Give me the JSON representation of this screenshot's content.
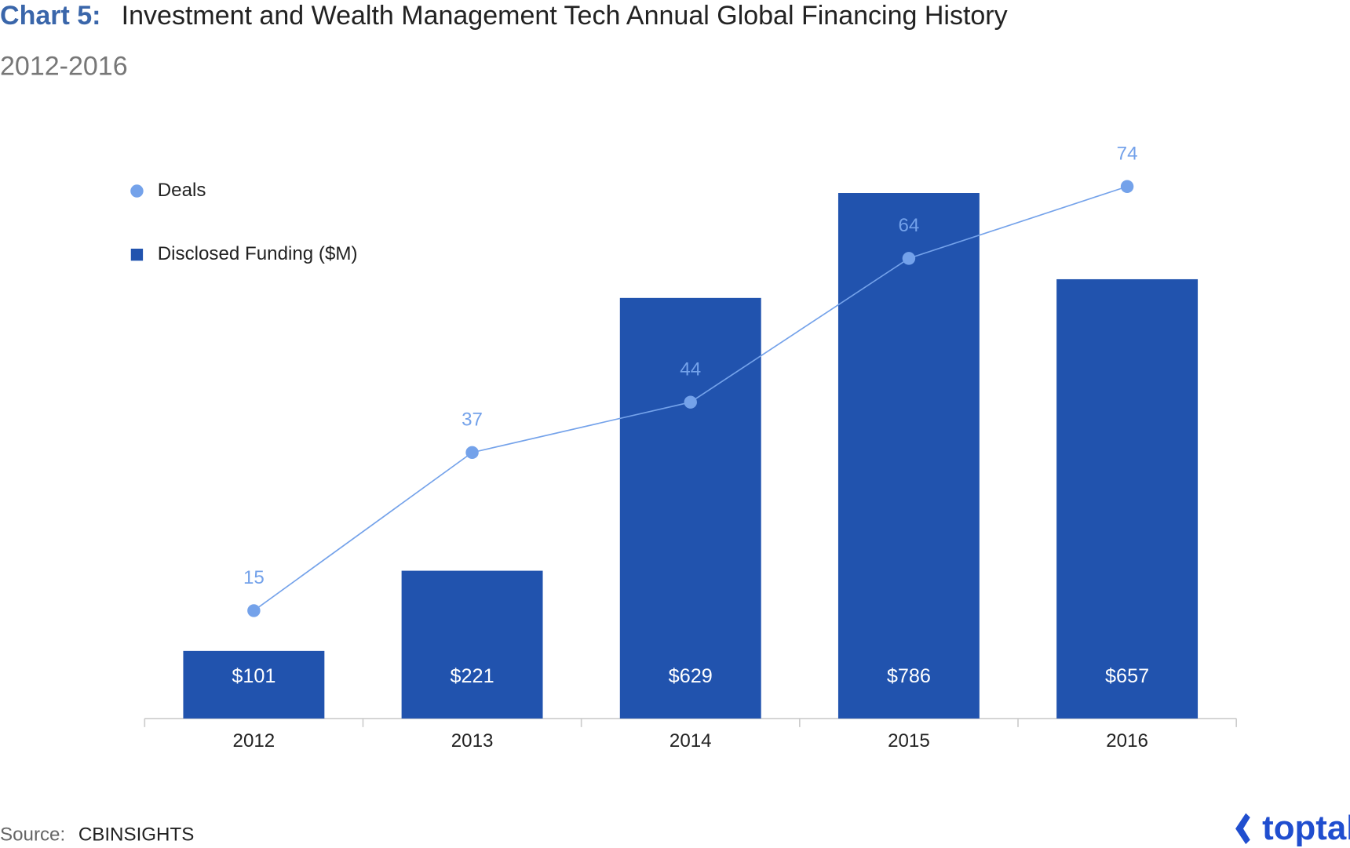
{
  "chart_data": {
    "type": "bar",
    "title_prefix": "Chart 5:",
    "title": "Investment and Wealth Management Tech Annual Global Financing History",
    "subtitle": "2012-2016",
    "categories": [
      "2012",
      "2013",
      "2014",
      "2015",
      "2016"
    ],
    "series": [
      {
        "name": "Deals",
        "type": "line",
        "axis": "y2",
        "color": "#74a2ea",
        "values": [
          15,
          37,
          44,
          64,
          74
        ]
      },
      {
        "name": "Disclosed Funding ($M)",
        "type": "bar",
        "color": "#2153ae",
        "values": [
          101,
          221,
          629,
          786,
          657
        ],
        "value_labels": [
          "$101",
          "$221",
          "$629",
          "$786",
          "$657"
        ]
      }
    ],
    "ylim": [
      0,
      1000
    ],
    "y2lim": [
      0,
      93
    ],
    "source_label": "Source:",
    "source": "CBINSIGHTS",
    "logo": "toptal"
  }
}
